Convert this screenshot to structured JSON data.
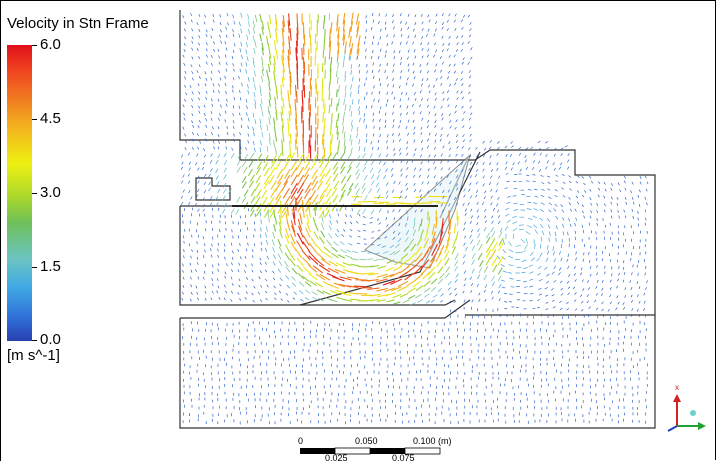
{
  "legend": {
    "title": "Velocity in Stn Frame",
    "max_label": "6.0",
    "tick_45": "4.5",
    "tick_30": "3.0",
    "tick_15": "1.5",
    "min_label": "0.0",
    "units": "[m s^-1]",
    "range": [
      0.0,
      6.0
    ]
  },
  "scale_bar": {
    "labels_top": [
      "0",
      "0.050",
      "0.100  (m)"
    ],
    "labels_bottom": [
      "0.025",
      "0.075"
    ]
  },
  "triad": {
    "x_label": "x"
  },
  "colors": {
    "max": "#e0101a",
    "mid": "#eef012",
    "min": "#2840b0"
  }
}
